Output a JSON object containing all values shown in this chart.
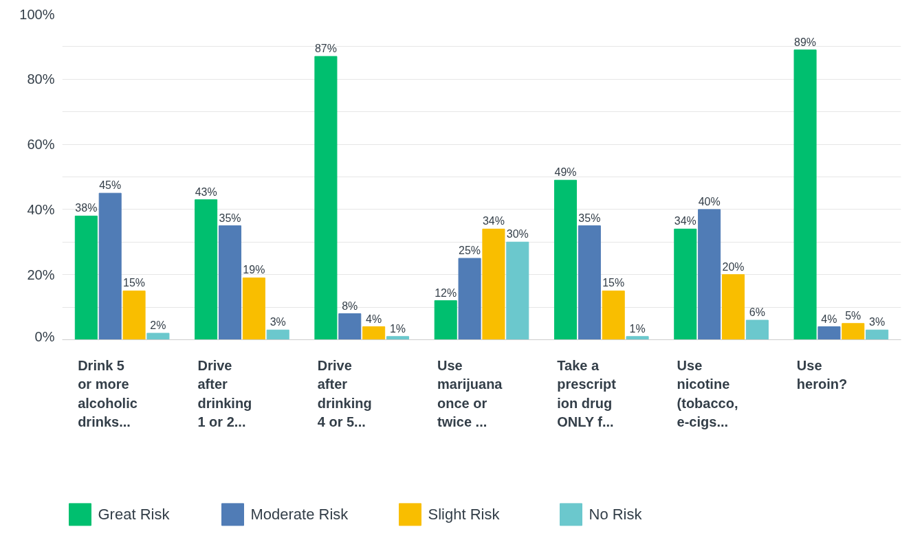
{
  "chart_data": {
    "type": "bar",
    "categories": [
      "Drink 5\nor more\nalcoholic\ndrinks...",
      "Drive\nafter\ndrinking\n1 or 2...",
      "Drive\nafter\ndrinking\n4 or 5...",
      "Use\nmarijuana\nonce or\ntwice ...",
      "Take a\nprescript\nion drug\nONLY f...",
      "Use\nnicotine\n(tobacco,\ne-cigs...",
      "Use\nheroin?"
    ],
    "series": [
      {
        "name": "Great Risk",
        "color": "#00bf6f",
        "values": [
          38,
          43,
          87,
          12,
          49,
          34,
          89
        ],
        "value_labels": [
          "38%",
          "43%",
          "87%",
          "12%",
          "49%",
          "34%",
          "89%"
        ]
      },
      {
        "name": "Moderate Risk",
        "color": "#507cb6",
        "values": [
          45,
          35,
          8,
          25,
          35,
          40,
          4
        ],
        "value_labels": [
          "45%",
          "35%",
          "8%",
          "25%",
          "35%",
          "40%",
          "4%"
        ]
      },
      {
        "name": "Slight Risk",
        "color": "#f9be00",
        "values": [
          15,
          19,
          4,
          34,
          15,
          20,
          5
        ],
        "value_labels": [
          "15%",
          "19%",
          "4%",
          "34%",
          "15%",
          "20%",
          "5%"
        ]
      },
      {
        "name": "No Risk",
        "color": "#6bc8cd",
        "values": [
          2,
          3,
          1,
          30,
          1,
          6,
          3
        ],
        "value_labels": [
          "2%",
          "3%",
          "1%",
          "30%",
          "1%",
          "6%",
          "3%"
        ]
      }
    ],
    "ylim": [
      0,
      100
    ],
    "yticks": [
      {
        "value": 0,
        "label": "0%"
      },
      {
        "value": 10,
        "label": null
      },
      {
        "value": 20,
        "label": "20%"
      },
      {
        "value": 30,
        "label": null
      },
      {
        "value": 40,
        "label": "40%"
      },
      {
        "value": 50,
        "label": null
      },
      {
        "value": 60,
        "label": "60%"
      },
      {
        "value": 70,
        "label": null
      },
      {
        "value": 80,
        "label": "80%"
      },
      {
        "value": 90,
        "label": null
      },
      {
        "value": 100,
        "label": "100%"
      }
    ],
    "grid": "y",
    "legend": "bottom"
  }
}
